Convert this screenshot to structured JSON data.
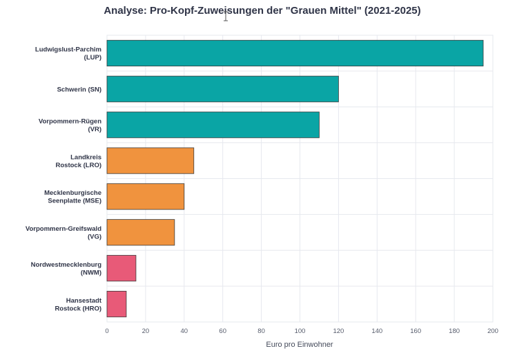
{
  "chart_data": {
    "type": "bar",
    "orientation": "horizontal",
    "title": "Analyse: Pro-Kopf-Zuweisungen der \"Grauen Mittel\" (2021-2025)",
    "xlabel": "Euro pro Einwohner",
    "ylabel": "",
    "xlim": [
      0,
      200
    ],
    "xticks": [
      0,
      20,
      40,
      60,
      80,
      100,
      120,
      140,
      160,
      180,
      200
    ],
    "grid": true,
    "categories": [
      [
        "Ludwigslust-Parchim",
        "(LUP)"
      ],
      [
        "Schwerin (SN)"
      ],
      [
        "Vorpommern-Rügen",
        "(VR)"
      ],
      [
        "Landkreis",
        "Rostock (LRO)"
      ],
      [
        "Mecklenburgische",
        "Seenplatte (MSE)"
      ],
      [
        "Vorpommern-Greifswald",
        "(VG)"
      ],
      [
        "Nordwestmecklenburg",
        "(NWM)"
      ],
      [
        "Hansestadt",
        "Rostock (HRO)"
      ]
    ],
    "values": [
      195,
      120,
      110,
      45,
      40,
      35,
      15,
      10
    ],
    "colors": [
      "#0aa5a5",
      "#0aa5a5",
      "#0aa5a5",
      "#f0933e",
      "#f0933e",
      "#f0933e",
      "#e85a78",
      "#e85a78"
    ]
  }
}
